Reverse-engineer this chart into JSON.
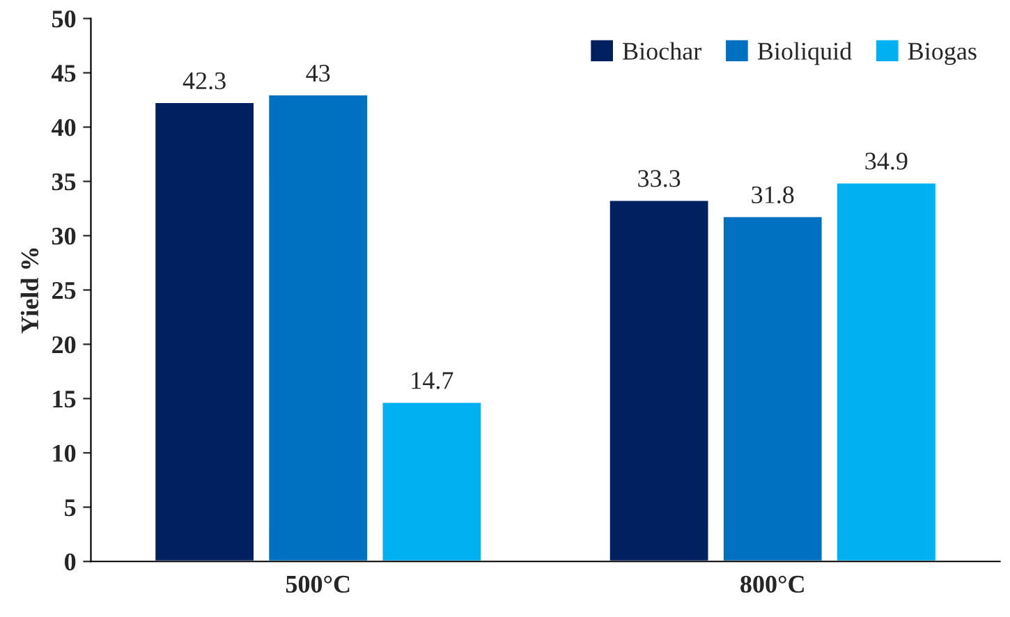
{
  "chart_data": {
    "type": "bar",
    "ylabel": "Yield %",
    "categories": [
      "500°C",
      "800°C"
    ],
    "series": [
      {
        "name": "Biochar",
        "color": "#002060",
        "values": [
          42.3,
          33.3
        ]
      },
      {
        "name": "Bioliquid",
        "color": "#0070c0",
        "values": [
          43,
          31.8
        ]
      },
      {
        "name": "Biogas",
        "color": "#00b0f0",
        "values": [
          14.7,
          34.9
        ]
      }
    ],
    "ylim": [
      0,
      50
    ],
    "yticks": [
      0,
      5,
      10,
      15,
      20,
      25,
      30,
      35,
      40,
      45,
      50
    ],
    "data_labels": true,
    "legend": "top right",
    "grid": false
  }
}
